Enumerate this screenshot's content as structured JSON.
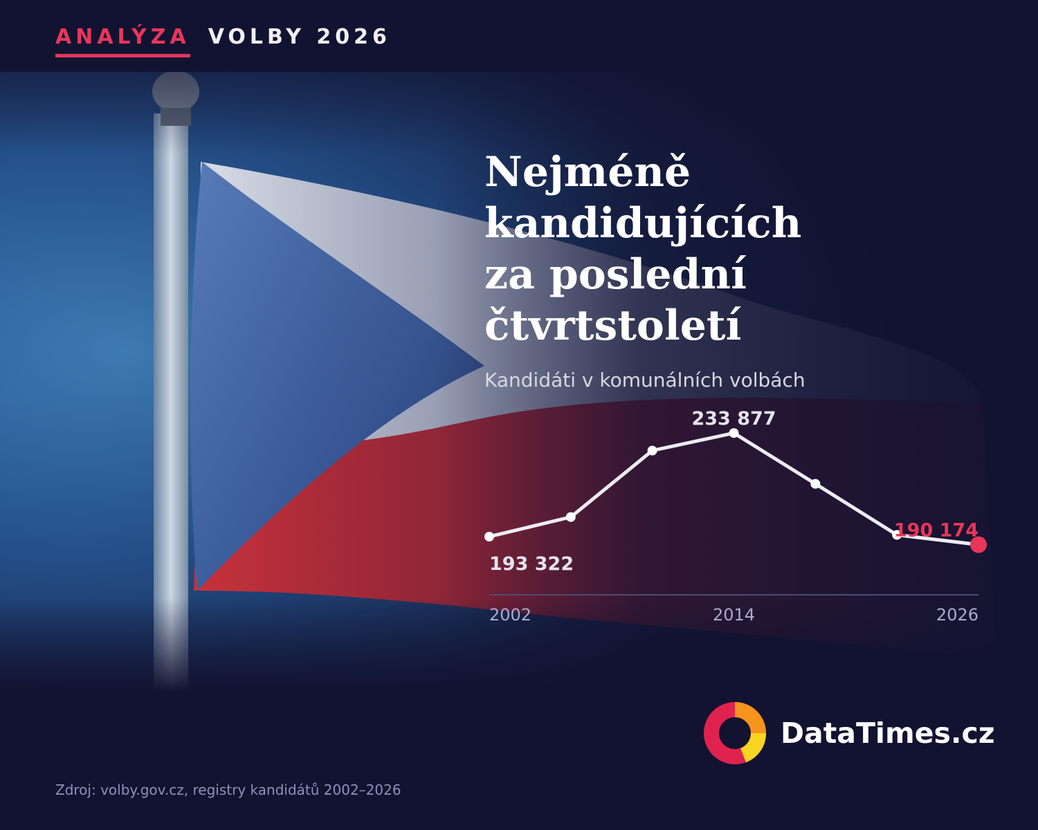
{
  "header": {
    "tag": "ANALÝZA",
    "section": "VOLBY 2026"
  },
  "title_lines": [
    "Nejméně",
    "kandidujících",
    "za poslední čtvrtstoletí"
  ],
  "subtitle": "Kandidáti v komunálních volbách",
  "chart_data": {
    "type": "line",
    "title": "",
    "xlabel": "",
    "ylabel": "",
    "x": [
      2002,
      2006,
      2010,
      2014,
      2018,
      2022,
      2026
    ],
    "series": [
      {
        "values": [
          193322,
          201000,
          227000,
          233877,
          214000,
          194000,
          190174
        ]
      }
    ],
    "x_tick_labels": [
      "2002",
      "2014",
      "2026"
    ],
    "data_labels": [
      {
        "x": 2002,
        "text": "193 322"
      },
      {
        "x": 2014,
        "text": "233 877"
      },
      {
        "x": 2026,
        "text": "190 174"
      }
    ],
    "ylim": [
      170000,
      245000
    ],
    "grid": false,
    "highlight_point": 2026
  },
  "colors": {
    "background": "#121331",
    "accent": "#e8365a",
    "line": "#ececf2",
    "axis": "#4a4d78",
    "tick": "#a9acd0"
  },
  "brand": {
    "name": "DataTimes.cz",
    "logo": "ring-logo-icon"
  },
  "source": "Zdroj: volby.gov.cz, registry kandidátů 2002–2026"
}
